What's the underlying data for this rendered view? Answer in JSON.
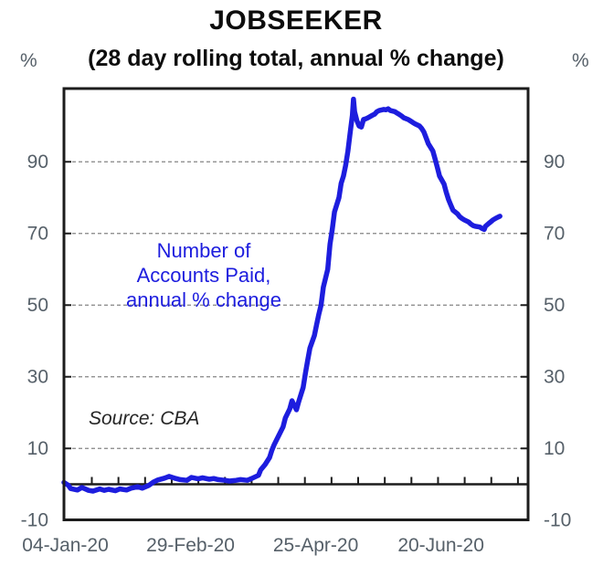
{
  "header": {
    "title": "JOBSEEKER",
    "subtitle": "(28 day rolling total, annual % change)"
  },
  "axes": {
    "unit_left": "%",
    "unit_right": "%"
  },
  "annotation": {
    "line1": "Number of",
    "line2": "Accounts Paid,",
    "line3": "annual % change"
  },
  "source_note": "Source: CBA",
  "colors": {
    "line": "#1d1dde",
    "annotation": "#1d1dde",
    "axis_text": "#566069",
    "grid": "#848484",
    "frame": "#1c1c1c"
  },
  "chart_data": {
    "type": "line",
    "title": "JOBSEEKER",
    "subtitle": "(28 day rolling total, annual % change)",
    "grid": "horizontal dashed",
    "legend_position": "none",
    "x_unit": "days since 04-Jan-2020",
    "x_epoch": "2020-01-04",
    "xlim_days": [
      0,
      207.6
    ],
    "x_tick_labels": [
      "04-Jan-20",
      "29-Feb-20",
      "25-Apr-20",
      "20-Jun-20"
    ],
    "x_tick_label_days": [
      0,
      56,
      112,
      168
    ],
    "ylim": [
      -10,
      110.4
    ],
    "y_ticks": [
      90,
      70,
      50,
      30,
      10,
      -10
    ],
    "gridline_values": [
      90,
      70,
      50,
      30,
      10
    ],
    "zero_axis": 0,
    "series": [
      {
        "name": "Number of Accounts Paid, annual % change",
        "color": "#1d1dde",
        "points": [
          [
            0,
            0.5
          ],
          [
            2,
            -0.3
          ],
          [
            3,
            -1.2
          ],
          [
            6,
            -1.6
          ],
          [
            8,
            -0.9
          ],
          [
            11,
            -1.7
          ],
          [
            13,
            -1.9
          ],
          [
            16,
            -1.3
          ],
          [
            18,
            -1.7
          ],
          [
            20,
            -1.4
          ],
          [
            23,
            -1.8
          ],
          [
            25,
            -1.3
          ],
          [
            28,
            -1.6
          ],
          [
            30,
            -1.1
          ],
          [
            33,
            -0.7
          ],
          [
            35,
            -1.1
          ],
          [
            38,
            -0.3
          ],
          [
            40,
            0.6
          ],
          [
            42,
            1.2
          ],
          [
            45,
            1.7
          ],
          [
            47,
            2.2
          ],
          [
            50,
            1.6
          ],
          [
            52,
            1.3
          ],
          [
            55,
            1.1
          ],
          [
            57,
            1.9
          ],
          [
            60,
            1.5
          ],
          [
            62,
            1.8
          ],
          [
            65,
            1.4
          ],
          [
            67,
            1.6
          ],
          [
            69,
            1.3
          ],
          [
            72,
            1.1
          ],
          [
            74,
            0.9
          ],
          [
            77,
            1.1
          ],
          [
            79,
            1.3
          ],
          [
            82,
            1.1
          ],
          [
            84,
            1.6
          ],
          [
            87,
            2.5
          ],
          [
            88,
            4.0
          ],
          [
            90,
            5.5
          ],
          [
            92,
            7.5
          ],
          [
            93,
            9.5
          ],
          [
            94,
            11.0
          ],
          [
            96,
            13.5
          ],
          [
            98,
            16.0
          ],
          [
            99,
            18.5
          ],
          [
            101,
            21.0
          ],
          [
            102,
            23.3
          ],
          [
            103,
            22.0
          ],
          [
            104,
            20.8
          ],
          [
            105,
            23.0
          ],
          [
            107,
            27.0
          ],
          [
            108,
            31.0
          ],
          [
            109,
            34.5
          ],
          [
            110,
            38.0
          ],
          [
            112,
            41.5
          ],
          [
            113,
            44.5
          ],
          [
            114,
            47.5
          ],
          [
            115,
            50.0
          ],
          [
            116,
            55.0
          ],
          [
            118,
            60.0
          ],
          [
            119,
            67.0
          ],
          [
            120,
            71.0
          ],
          [
            121,
            76.0
          ],
          [
            123,
            80.0
          ],
          [
            124,
            84.0
          ],
          [
            125,
            86.0
          ],
          [
            126,
            89.0
          ],
          [
            127,
            93.0
          ],
          [
            128,
            98.0
          ],
          [
            129,
            103.0
          ],
          [
            129.5,
            107.5
          ],
          [
            130,
            104.0
          ],
          [
            131,
            101.5
          ],
          [
            132,
            100.0
          ],
          [
            133,
            99.7
          ],
          [
            134,
            101.8
          ],
          [
            135,
            102.0
          ],
          [
            136,
            102.3
          ],
          [
            138,
            103.0
          ],
          [
            139,
            103.3
          ],
          [
            140,
            104.0
          ],
          [
            141,
            104.3
          ],
          [
            143,
            104.6
          ],
          [
            144,
            104.5
          ],
          [
            145,
            104.8
          ],
          [
            146,
            104.3
          ],
          [
            148,
            104.0
          ],
          [
            149,
            103.6
          ],
          [
            150,
            103.2
          ],
          [
            151,
            102.8
          ],
          [
            152,
            102.3
          ],
          [
            154,
            101.8
          ],
          [
            155,
            101.4
          ],
          [
            156,
            101.0
          ],
          [
            157,
            100.6
          ],
          [
            159,
            100.0
          ],
          [
            160,
            99.3
          ],
          [
            161,
            98.3
          ],
          [
            162,
            96.7
          ],
          [
            163,
            95.0
          ],
          [
            165,
            93.0
          ],
          [
            166,
            90.8
          ],
          [
            167,
            88.5
          ],
          [
            168,
            86.0
          ],
          [
            170,
            83.8
          ],
          [
            171,
            81.5
          ],
          [
            172,
            79.5
          ],
          [
            173,
            78.0
          ],
          [
            174,
            76.5
          ],
          [
            176,
            75.5
          ],
          [
            177,
            74.7
          ],
          [
            178,
            74.2
          ],
          [
            179,
            73.8
          ],
          [
            181,
            73.2
          ],
          [
            182,
            72.6
          ],
          [
            183,
            72.2
          ],
          [
            184,
            72.0
          ],
          [
            186,
            71.8
          ],
          [
            187,
            71.4
          ],
          [
            188,
            71.1
          ],
          [
            188.5,
            72.0
          ],
          [
            190,
            72.8
          ],
          [
            191,
            73.3
          ],
          [
            192,
            73.8
          ],
          [
            193,
            74.2
          ],
          [
            194,
            74.5
          ],
          [
            195,
            74.8
          ]
        ]
      }
    ],
    "annotations": [
      {
        "text": "Number of Accounts Paid, annual % change",
        "color": "#1d1dde"
      },
      {
        "text": "Source: CBA",
        "style": "italic"
      }
    ]
  }
}
